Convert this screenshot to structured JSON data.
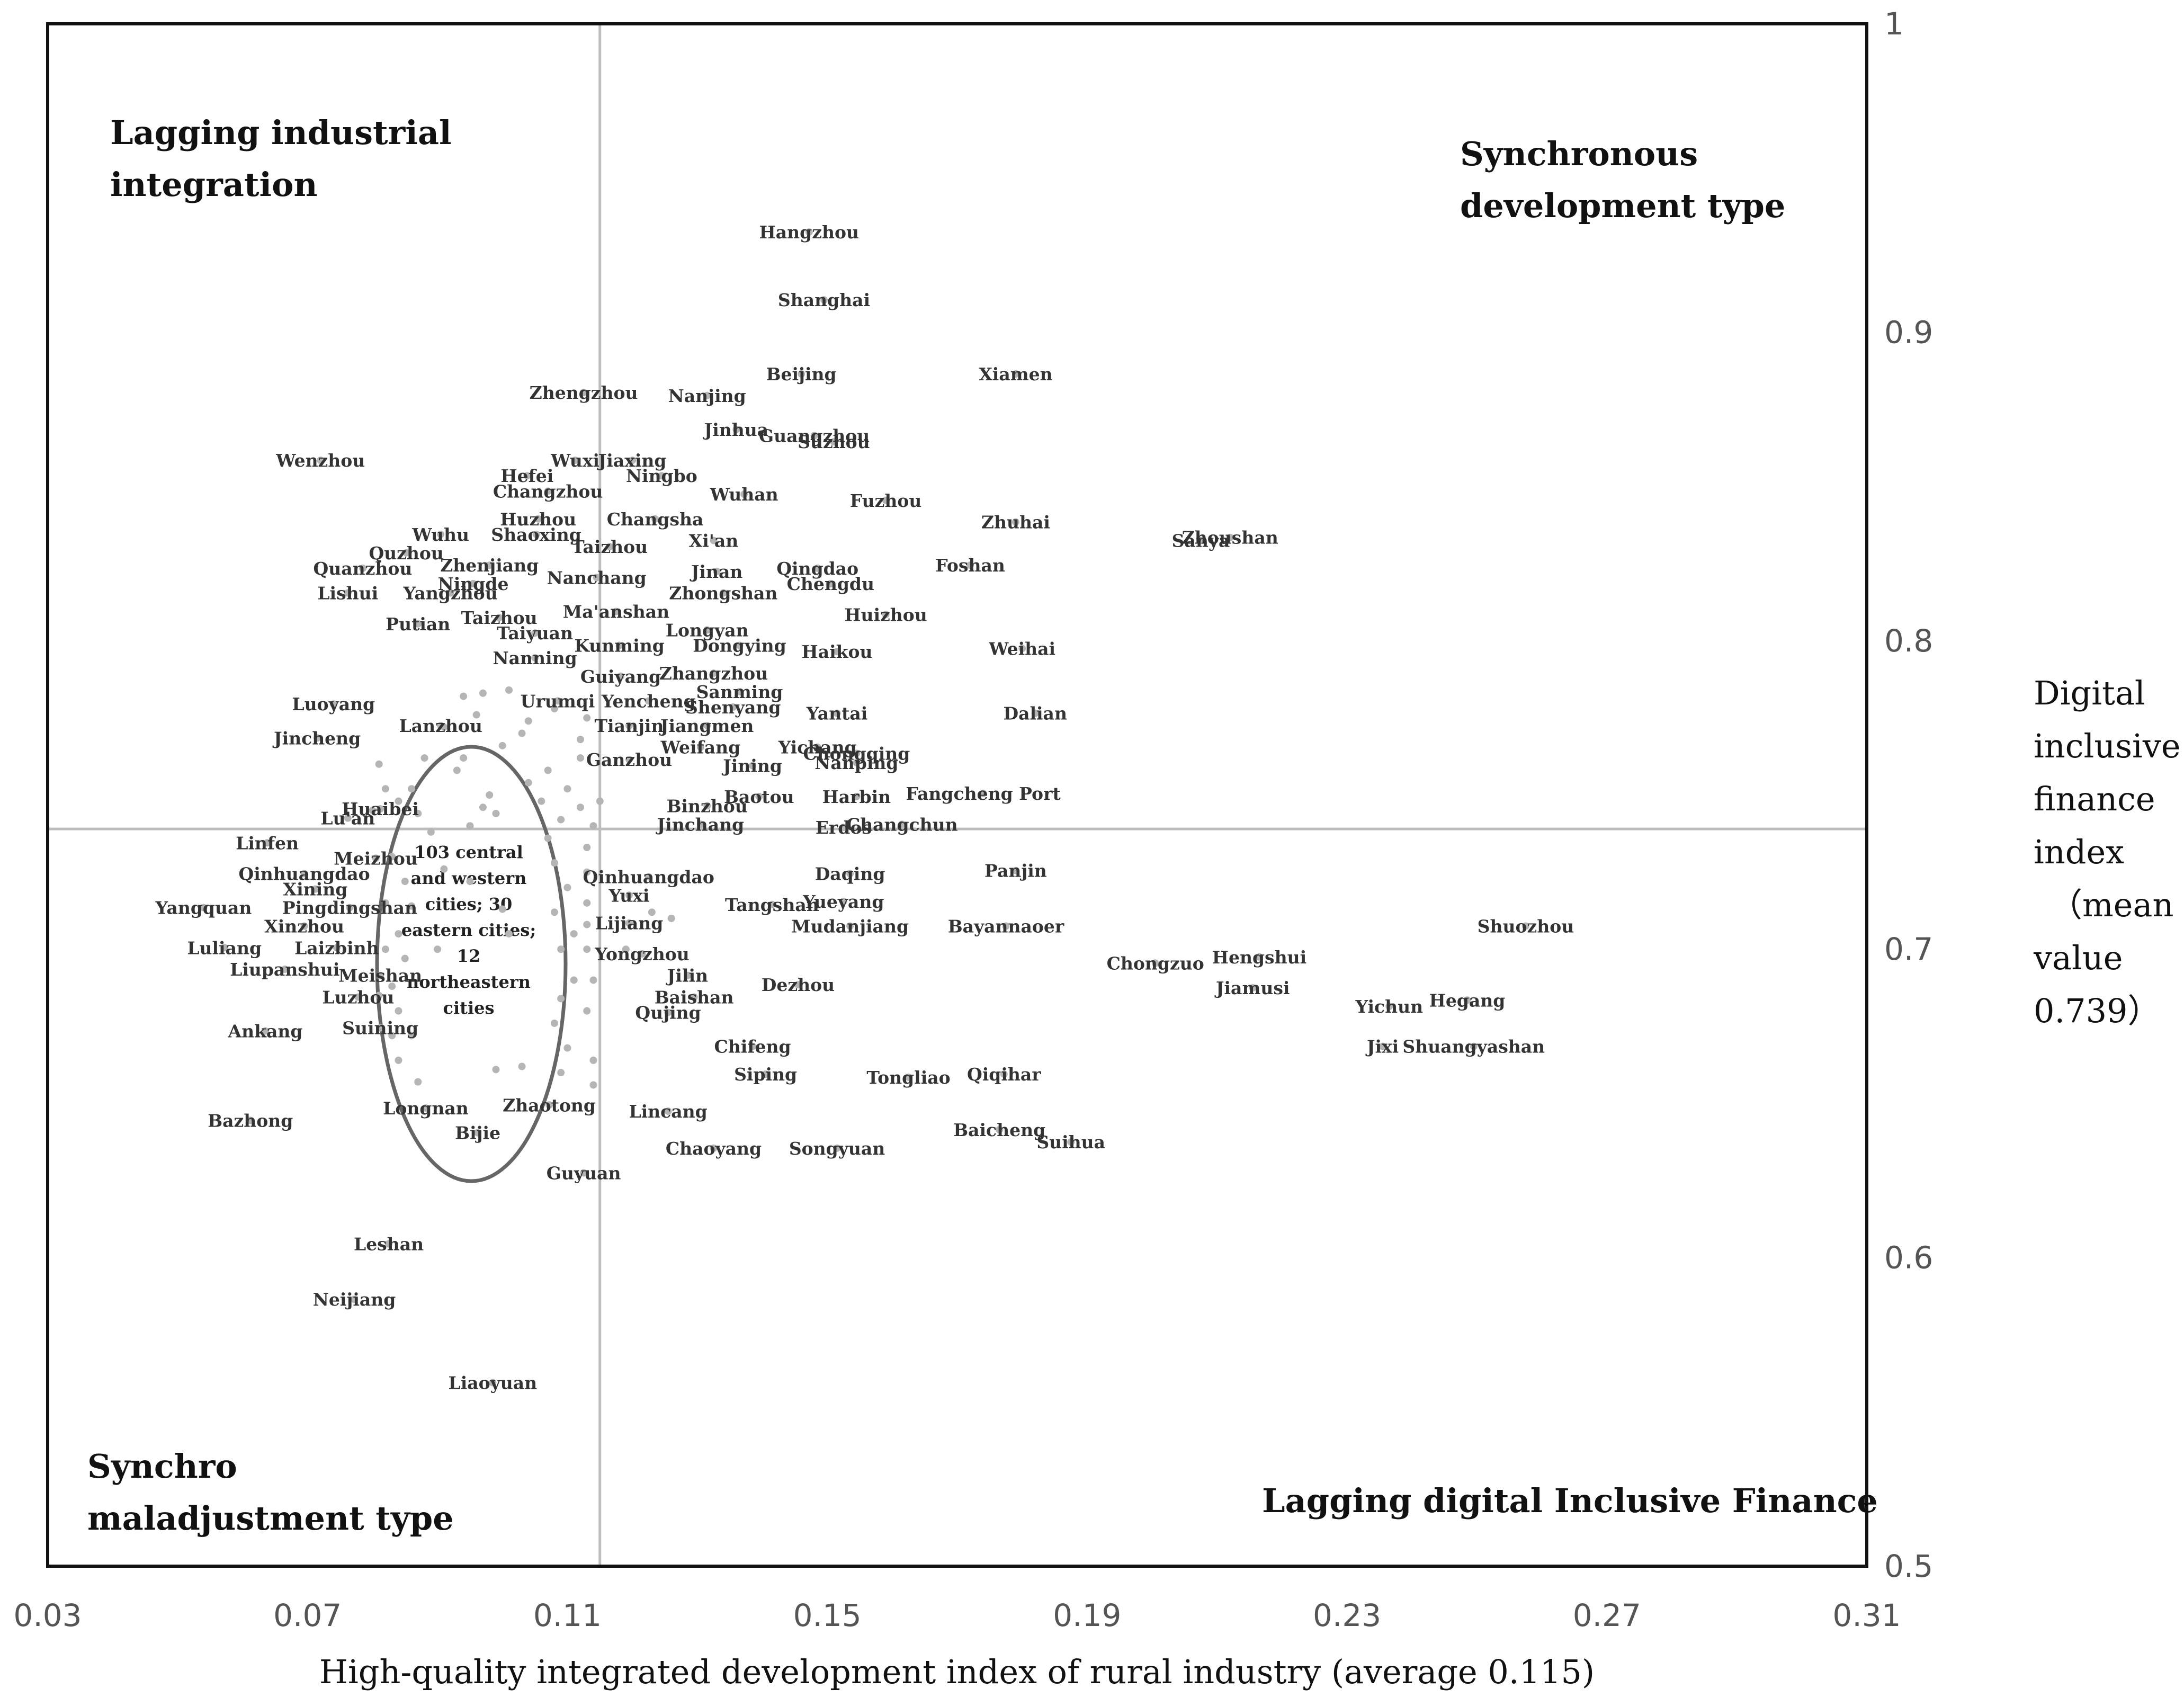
{
  "chart_data": {
    "type": "scatter",
    "xlabel": "High-quality integrated development index of rural industry (average 0.115)",
    "ylabel_lines": [
      "Digital",
      "inclusive",
      "finance",
      "index",
      "（mean",
      "value",
      "0.739）"
    ],
    "xlim": [
      0.03,
      0.31
    ],
    "ylim": [
      0.5,
      1.0
    ],
    "x_ticks": [
      "0.03",
      "0.07",
      "0.11",
      "0.15",
      "0.19",
      "0.23",
      "0.27",
      "0.31"
    ],
    "y_ticks": [
      "0.5",
      "0.6",
      "0.7",
      "0.8",
      "0.9",
      "1"
    ],
    "x_mean": 0.115,
    "y_mean": 0.739,
    "grid": false,
    "quadrants": {
      "top_left": [
        "Lagging industrial",
        "integration"
      ],
      "top_right": [
        "Synchronous",
        "development type"
      ],
      "bottom_left": [
        "Synchro",
        "maladjustment type"
      ],
      "bottom_right": [
        "Lagging digital Inclusive Finance"
      ]
    },
    "ellipse_annotation": [
      "103 central",
      "and western",
      "cities; 30",
      "eastern cities;",
      "12",
      "northeastern",
      "cities"
    ],
    "points": [
      {
        "name": "Hangzhou",
        "x": 0.1472,
        "y": 0.9325
      },
      {
        "name": "Shanghai",
        "x": 0.1495,
        "y": 0.9105
      },
      {
        "name": "Beijing",
        "x": 0.146,
        "y": 0.8865
      },
      {
        "name": "Xiamen",
        "x": 0.179,
        "y": 0.8865
      },
      {
        "name": "Zhengzhou",
        "x": 0.1125,
        "y": 0.8805
      },
      {
        "name": "Nanjing",
        "x": 0.1315,
        "y": 0.8795
      },
      {
        "name": "Guangzhou",
        "x": 0.148,
        "y": 0.8665
      },
      {
        "name": "Suzhou",
        "x": 0.151,
        "y": 0.8645
      },
      {
        "name": "Jinhua",
        "x": 0.136,
        "y": 0.8685
      },
      {
        "name": "Wuxi",
        "x": 0.1112,
        "y": 0.8585
      },
      {
        "name": "Wenzhou",
        "x": 0.072,
        "y": 0.8585
      },
      {
        "name": "Jiaxing",
        "x": 0.12,
        "y": 0.8585
      },
      {
        "name": "Hefei",
        "x": 0.1038,
        "y": 0.8535
      },
      {
        "name": "Ningbo",
        "x": 0.1245,
        "y": 0.8535
      },
      {
        "name": "Changzhou",
        "x": 0.107,
        "y": 0.8485
      },
      {
        "name": "Wuhan",
        "x": 0.1372,
        "y": 0.8475
      },
      {
        "name": "Fuzhou",
        "x": 0.159,
        "y": 0.8455
      },
      {
        "name": "Zhuhai",
        "x": 0.179,
        "y": 0.8385
      },
      {
        "name": "Zhoushan",
        "x": 0.212,
        "y": 0.8335
      },
      {
        "name": "Sanya",
        "x": 0.2075,
        "y": 0.8325
      },
      {
        "name": "Huzhou",
        "x": 0.1055,
        "y": 0.8395
      },
      {
        "name": "Changsha",
        "x": 0.1235,
        "y": 0.8395
      },
      {
        "name": "Wuhu",
        "x": 0.0905,
        "y": 0.8345
      },
      {
        "name": "Shaoxing",
        "x": 0.1052,
        "y": 0.8345
      },
      {
        "name": "Xi'an",
        "x": 0.1325,
        "y": 0.8325
      },
      {
        "name": "Taizhou",
        "x": 0.1165,
        "y": 0.8305
      },
      {
        "name": "Quzhou",
        "x": 0.0852,
        "y": 0.8285
      },
      {
        "name": "Foshan",
        "x": 0.172,
        "y": 0.8245
      },
      {
        "name": "Quanzhou",
        "x": 0.0785,
        "y": 0.8235
      },
      {
        "name": "Zhenjiang",
        "x": 0.098,
        "y": 0.8245
      },
      {
        "name": "Jinan",
        "x": 0.133,
        "y": 0.8225
      },
      {
        "name": "Qingdao",
        "x": 0.1485,
        "y": 0.8235
      },
      {
        "name": "Nanchang",
        "x": 0.1145,
        "y": 0.8205
      },
      {
        "name": "Ningde",
        "x": 0.0955,
        "y": 0.8185
      },
      {
        "name": "Chengdu",
        "x": 0.1505,
        "y": 0.8185
      },
      {
        "name": "Zhongshan",
        "x": 0.134,
        "y": 0.8155
      },
      {
        "name": "Lishui",
        "x": 0.0762,
        "y": 0.8155
      },
      {
        "name": "Yangzhou",
        "x": 0.092,
        "y": 0.8155
      },
      {
        "name": "Ma'anshan",
        "x": 0.1175,
        "y": 0.8095
      },
      {
        "name": "Huizhou",
        "x": 0.159,
        "y": 0.8085
      },
      {
        "name": "Putian",
        "x": 0.087,
        "y": 0.8055
      },
      {
        "name": "Taizhou",
        "x": 0.0995,
        "y": 0.8075
      },
      {
        "name": "Taiyuan",
        "x": 0.105,
        "y": 0.8025
      },
      {
        "name": "Longyan",
        "x": 0.1315,
        "y": 0.8035
      },
      {
        "name": "Kunming",
        "x": 0.118,
        "y": 0.7985
      },
      {
        "name": "Dongying",
        "x": 0.1365,
        "y": 0.7985
      },
      {
        "name": "Haikou",
        "x": 0.1515,
        "y": 0.7965
      },
      {
        "name": "Weihai",
        "x": 0.18,
        "y": 0.7975
      },
      {
        "name": "Nanning",
        "x": 0.105,
        "y": 0.7945
      },
      {
        "name": "Guiyang",
        "x": 0.1182,
        "y": 0.7885
      },
      {
        "name": "Zhangzhou",
        "x": 0.1325,
        "y": 0.7895
      },
      {
        "name": "Sanming",
        "x": 0.1365,
        "y": 0.7835
      },
      {
        "name": "Urumqi",
        "x": 0.1085,
        "y": 0.7805
      },
      {
        "name": "Yencheng",
        "x": 0.1225,
        "y": 0.7805
      },
      {
        "name": "Shenyang",
        "x": 0.1355,
        "y": 0.7785
      },
      {
        "name": "Yantai",
        "x": 0.1515,
        "y": 0.7765
      },
      {
        "name": "Luoyang",
        "x": 0.074,
        "y": 0.7795
      },
      {
        "name": "Dalian",
        "x": 0.182,
        "y": 0.7765
      },
      {
        "name": "Lanzhou",
        "x": 0.0905,
        "y": 0.7725
      },
      {
        "name": "Tianjin",
        "x": 0.1195,
        "y": 0.7725
      },
      {
        "name": "Jiangmen",
        "x": 0.1315,
        "y": 0.7725
      },
      {
        "name": "Jincheng",
        "x": 0.0715,
        "y": 0.7685
      },
      {
        "name": "Weifang",
        "x": 0.1305,
        "y": 0.7655
      },
      {
        "name": "Yichang",
        "x": 0.1485,
        "y": 0.7655
      },
      {
        "name": "Chongqing",
        "x": 0.1545,
        "y": 0.7635
      },
      {
        "name": "Ganzhou",
        "x": 0.1195,
        "y": 0.7615
      },
      {
        "name": "Nanping",
        "x": 0.1545,
        "y": 0.7605
      },
      {
        "name": "Jining",
        "x": 0.1385,
        "y": 0.7595
      },
      {
        "name": "Harbin",
        "x": 0.1545,
        "y": 0.7495
      },
      {
        "name": "Baotou",
        "x": 0.1395,
        "y": 0.7495
      },
      {
        "name": "Fangcheng Port",
        "x": 0.174,
        "y": 0.7505
      },
      {
        "name": "Binzhou",
        "x": 0.1315,
        "y": 0.7465
      },
      {
        "name": "Huaibei",
        "x": 0.0812,
        "y": 0.7455
      },
      {
        "name": "Lu'an",
        "x": 0.0762,
        "y": 0.7425
      },
      {
        "name": "Jinchang",
        "x": 0.1305,
        "y": 0.7405
      },
      {
        "name": "Erdos",
        "x": 0.1525,
        "y": 0.7395
      },
      {
        "name": "Changchun",
        "x": 0.1615,
        "y": 0.7405
      },
      {
        "name": "Linfen",
        "x": 0.0638,
        "y": 0.7345
      },
      {
        "name": "Meizhou",
        "x": 0.0805,
        "y": 0.7295
      },
      {
        "name": "Daqing",
        "x": 0.1535,
        "y": 0.7245
      },
      {
        "name": "Panjin",
        "x": 0.179,
        "y": 0.7255
      },
      {
        "name": "Qinhuangdao",
        "x": 0.0695,
        "y": 0.7245
      },
      {
        "name": "Qinhuangdao",
        "x": 0.1225,
        "y": 0.7235
      },
      {
        "name": "Xining",
        "x": 0.0712,
        "y": 0.7195
      },
      {
        "name": "Yuxi",
        "x": 0.1195,
        "y": 0.7175
      },
      {
        "name": "Yueyang",
        "x": 0.1525,
        "y": 0.7155
      },
      {
        "name": "Yangquan",
        "x": 0.054,
        "y": 0.7135
      },
      {
        "name": "Pingdingshan",
        "x": 0.0765,
        "y": 0.7135
      },
      {
        "name": "Tangshan",
        "x": 0.1415,
        "y": 0.7145
      },
      {
        "name": "Xinzhou",
        "x": 0.0695,
        "y": 0.7075
      },
      {
        "name": "Lijiang",
        "x": 0.1195,
        "y": 0.7085
      },
      {
        "name": "Mudanjiang",
        "x": 0.1535,
        "y": 0.7075
      },
      {
        "name": "Bayannaoer",
        "x": 0.1775,
        "y": 0.7075
      },
      {
        "name": "Shuozhou",
        "x": 0.2575,
        "y": 0.7075
      },
      {
        "name": "Hengshui",
        "x": 0.2165,
        "y": 0.6975
      },
      {
        "name": "Laizbinh",
        "x": 0.0745,
        "y": 0.7005
      },
      {
        "name": "Luliang",
        "x": 0.0572,
        "y": 0.7005
      },
      {
        "name": "Yongzhou",
        "x": 0.1215,
        "y": 0.6985
      },
      {
        "name": "Chongzuo",
        "x": 0.2005,
        "y": 0.6955
      },
      {
        "name": "Liupanshui",
        "x": 0.0665,
        "y": 0.6935
      },
      {
        "name": "Meishan",
        "x": 0.0812,
        "y": 0.6915
      },
      {
        "name": "Jilin",
        "x": 0.1285,
        "y": 0.6915
      },
      {
        "name": "Dezhou",
        "x": 0.1455,
        "y": 0.6885
      },
      {
        "name": "Jiamusi",
        "x": 0.2155,
        "y": 0.6875
      },
      {
        "name": "Hegang",
        "x": 0.2485,
        "y": 0.6835
      },
      {
        "name": "Luzhou",
        "x": 0.0778,
        "y": 0.6845
      },
      {
        "name": "Baishan",
        "x": 0.1295,
        "y": 0.6845
      },
      {
        "name": "Yichun",
        "x": 0.2365,
        "y": 0.6815
      },
      {
        "name": "Qujing",
        "x": 0.1255,
        "y": 0.6795
      },
      {
        "name": "Ankang",
        "x": 0.0635,
        "y": 0.6735
      },
      {
        "name": "Suining",
        "x": 0.0812,
        "y": 0.6745
      },
      {
        "name": "Jixi",
        "x": 0.2355,
        "y": 0.6685
      },
      {
        "name": "Shuangyashan",
        "x": 0.2495,
        "y": 0.6685
      },
      {
        "name": "Chifeng",
        "x": 0.1385,
        "y": 0.6685
      },
      {
        "name": "Siping",
        "x": 0.1405,
        "y": 0.6595
      },
      {
        "name": "Tongliao",
        "x": 0.1625,
        "y": 0.6585
      },
      {
        "name": "Qiqihar",
        "x": 0.1772,
        "y": 0.6595
      },
      {
        "name": "Bazhong",
        "x": 0.0612,
        "y": 0.6445
      },
      {
        "name": "Longnan",
        "x": 0.0882,
        "y": 0.6485
      },
      {
        "name": "Zhaotong",
        "x": 0.1072,
        "y": 0.6495
      },
      {
        "name": "Lincang",
        "x": 0.1255,
        "y": 0.6475
      },
      {
        "name": "Baicheng",
        "x": 0.1765,
        "y": 0.6415
      },
      {
        "name": "Suihua",
        "x": 0.1875,
        "y": 0.6375
      },
      {
        "name": "Bijie",
        "x": 0.0962,
        "y": 0.6405
      },
      {
        "name": "Chaoyang",
        "x": 0.1325,
        "y": 0.6355
      },
      {
        "name": "Songyuan",
        "x": 0.1515,
        "y": 0.6355
      },
      {
        "name": "Guyuan",
        "x": 0.1125,
        "y": 0.6275
      },
      {
        "name": "Leshan",
        "x": 0.0825,
        "y": 0.6045
      },
      {
        "name": "Neijiang",
        "x": 0.0772,
        "y": 0.5865
      },
      {
        "name": "Liaoyuan",
        "x": 0.0985,
        "y": 0.5595
      }
    ],
    "unlabeled_points": [
      [
        0.094,
        0.782
      ],
      [
        0.097,
        0.783
      ],
      [
        0.101,
        0.784
      ],
      [
        0.108,
        0.778
      ],
      [
        0.104,
        0.774
      ],
      [
        0.1,
        0.766
      ],
      [
        0.094,
        0.762
      ],
      [
        0.093,
        0.758
      ],
      [
        0.098,
        0.75
      ],
      [
        0.097,
        0.746
      ],
      [
        0.099,
        0.744
      ],
      [
        0.095,
        0.74
      ],
      [
        0.088,
        0.762
      ],
      [
        0.086,
        0.752
      ],
      [
        0.084,
        0.748
      ],
      [
        0.087,
        0.744
      ],
      [
        0.089,
        0.738
      ],
      [
        0.083,
        0.73
      ],
      [
        0.085,
        0.722
      ],
      [
        0.086,
        0.714
      ],
      [
        0.084,
        0.705
      ],
      [
        0.085,
        0.697
      ],
      [
        0.083,
        0.688
      ],
      [
        0.084,
        0.68
      ],
      [
        0.086,
        0.672
      ],
      [
        0.084,
        0.664
      ],
      [
        0.087,
        0.657
      ],
      [
        0.099,
        0.661
      ],
      [
        0.103,
        0.662
      ],
      [
        0.109,
        0.66
      ],
      [
        0.11,
        0.668
      ],
      [
        0.108,
        0.676
      ],
      [
        0.109,
        0.684
      ],
      [
        0.111,
        0.69
      ],
      [
        0.109,
        0.7
      ],
      [
        0.111,
        0.705
      ],
      [
        0.108,
        0.712
      ],
      [
        0.11,
        0.72
      ],
      [
        0.108,
        0.728
      ],
      [
        0.107,
        0.736
      ],
      [
        0.109,
        0.742
      ],
      [
        0.106,
        0.748
      ],
      [
        0.104,
        0.754
      ],
      [
        0.107,
        0.758
      ],
      [
        0.11,
        0.752
      ],
      [
        0.112,
        0.746
      ],
      [
        0.115,
        0.748
      ],
      [
        0.114,
        0.74
      ],
      [
        0.113,
        0.733
      ],
      [
        0.113,
        0.725
      ],
      [
        0.113,
        0.715
      ],
      [
        0.113,
        0.708
      ],
      [
        0.113,
        0.7
      ],
      [
        0.114,
        0.69
      ],
      [
        0.113,
        0.68
      ],
      [
        0.114,
        0.664
      ],
      [
        0.114,
        0.656
      ],
      [
        0.119,
        0.7
      ],
      [
        0.123,
        0.712
      ],
      [
        0.126,
        0.71
      ],
      [
        0.091,
        0.772
      ],
      [
        0.103,
        0.77
      ],
      [
        0.096,
        0.776
      ],
      [
        0.112,
        0.768
      ],
      [
        0.112,
        0.762
      ],
      [
        0.113,
        0.775
      ],
      [
        0.08,
        0.745
      ],
      [
        0.081,
        0.76
      ],
      [
        0.082,
        0.752
      ],
      [
        0.082,
        0.715
      ],
      [
        0.082,
        0.7
      ],
      [
        0.095,
        0.722
      ],
      [
        0.1,
        0.713
      ],
      [
        0.101,
        0.705
      ],
      [
        0.091,
        0.726
      ],
      [
        0.09,
        0.7
      ],
      [
        0.081,
        0.685
      ],
      [
        0.083,
        0.672
      ]
    ]
  }
}
